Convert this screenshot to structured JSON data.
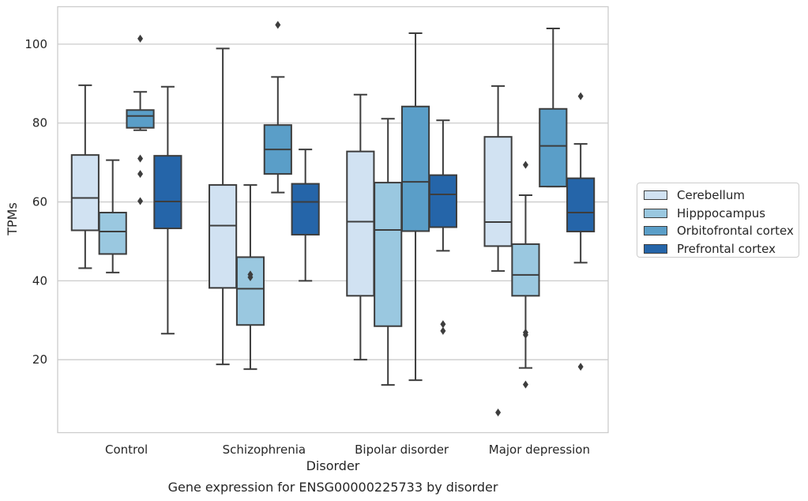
{
  "chart_data": {
    "type": "box",
    "title": "Gene expression for ENSG00000225733 by disorder",
    "xlabel": "Disorder",
    "ylabel": "TPMs",
    "ylim": [
      1.5,
      109.5
    ],
    "yticks": [
      20,
      40,
      60,
      80,
      100
    ],
    "grid": "horizontal",
    "legend_position": "right",
    "categories": [
      "Control",
      "Schizophrenia",
      "Bipolar disorder",
      "Major depression"
    ],
    "series": [
      {
        "name": "Cerebellum",
        "color": "#d1e2f2",
        "boxes": [
          {
            "whisker_low": 43.2,
            "q1": 52.8,
            "median": 61.0,
            "q3": 71.9,
            "whisker_high": 89.6,
            "outliers": []
          },
          {
            "whisker_low": 18.8,
            "q1": 38.2,
            "median": 54.0,
            "q3": 64.3,
            "whisker_high": 98.9,
            "outliers": []
          },
          {
            "whisker_low": 20.0,
            "q1": 36.2,
            "median": 55.0,
            "q3": 72.8,
            "whisker_high": 87.2,
            "outliers": []
          },
          {
            "whisker_low": 42.5,
            "q1": 48.8,
            "median": 54.9,
            "q3": 76.5,
            "whisker_high": 89.4,
            "outliers": [
              6.6
            ]
          }
        ]
      },
      {
        "name": "Hipppocampus",
        "color": "#9ac8e0",
        "boxes": [
          {
            "whisker_low": 42.1,
            "q1": 46.8,
            "median": 52.5,
            "q3": 57.3,
            "whisker_high": 70.6,
            "outliers": []
          },
          {
            "whisker_low": 17.6,
            "q1": 28.8,
            "median": 38.0,
            "q3": 46.0,
            "whisker_high": 64.3,
            "outliers": [
              41.6,
              40.9
            ]
          },
          {
            "whisker_low": 13.6,
            "q1": 28.5,
            "median": 52.9,
            "q3": 64.9,
            "whisker_high": 81.1,
            "outliers": []
          },
          {
            "whisker_low": 17.9,
            "q1": 36.2,
            "median": 41.5,
            "q3": 49.3,
            "whisker_high": 61.7,
            "outliers": [
              69.4,
              26.9,
              26.3,
              13.7
            ]
          }
        ]
      },
      {
        "name": "Orbitofrontal cortex",
        "color": "#5a9ec8",
        "boxes": [
          {
            "whisker_low": 78.2,
            "q1": 78.8,
            "median": 81.8,
            "q3": 83.3,
            "whisker_high": 87.9,
            "outliers": [
              101.4,
              71.0,
              67.1,
              60.2
            ]
          },
          {
            "whisker_low": 62.4,
            "q1": 67.1,
            "median": 73.3,
            "q3": 79.5,
            "whisker_high": 91.7,
            "outliers": [
              104.9
            ]
          },
          {
            "whisker_low": 14.8,
            "q1": 52.6,
            "median": 65.1,
            "q3": 84.2,
            "whisker_high": 102.8,
            "outliers": []
          },
          {
            "whisker_low": 63.9,
            "q1": 63.9,
            "median": 74.2,
            "q3": 83.6,
            "whisker_high": 104.0,
            "outliers": []
          }
        ]
      },
      {
        "name": "Prefrontal cortex",
        "color": "#2565a9",
        "boxes": [
          {
            "whisker_low": 26.6,
            "q1": 53.3,
            "median": 60.1,
            "q3": 71.7,
            "whisker_high": 89.2,
            "outliers": []
          },
          {
            "whisker_low": 40.0,
            "q1": 51.7,
            "median": 60.0,
            "q3": 64.6,
            "whisker_high": 73.3,
            "outliers": []
          },
          {
            "whisker_low": 47.6,
            "q1": 53.6,
            "median": 61.9,
            "q3": 66.8,
            "whisker_high": 80.7,
            "outliers": [
              29.0,
              27.3
            ]
          },
          {
            "whisker_low": 44.6,
            "q1": 52.5,
            "median": 57.3,
            "q3": 66.0,
            "whisker_high": 74.7,
            "outliers": [
              86.8,
              18.2
            ]
          }
        ]
      }
    ]
  }
}
